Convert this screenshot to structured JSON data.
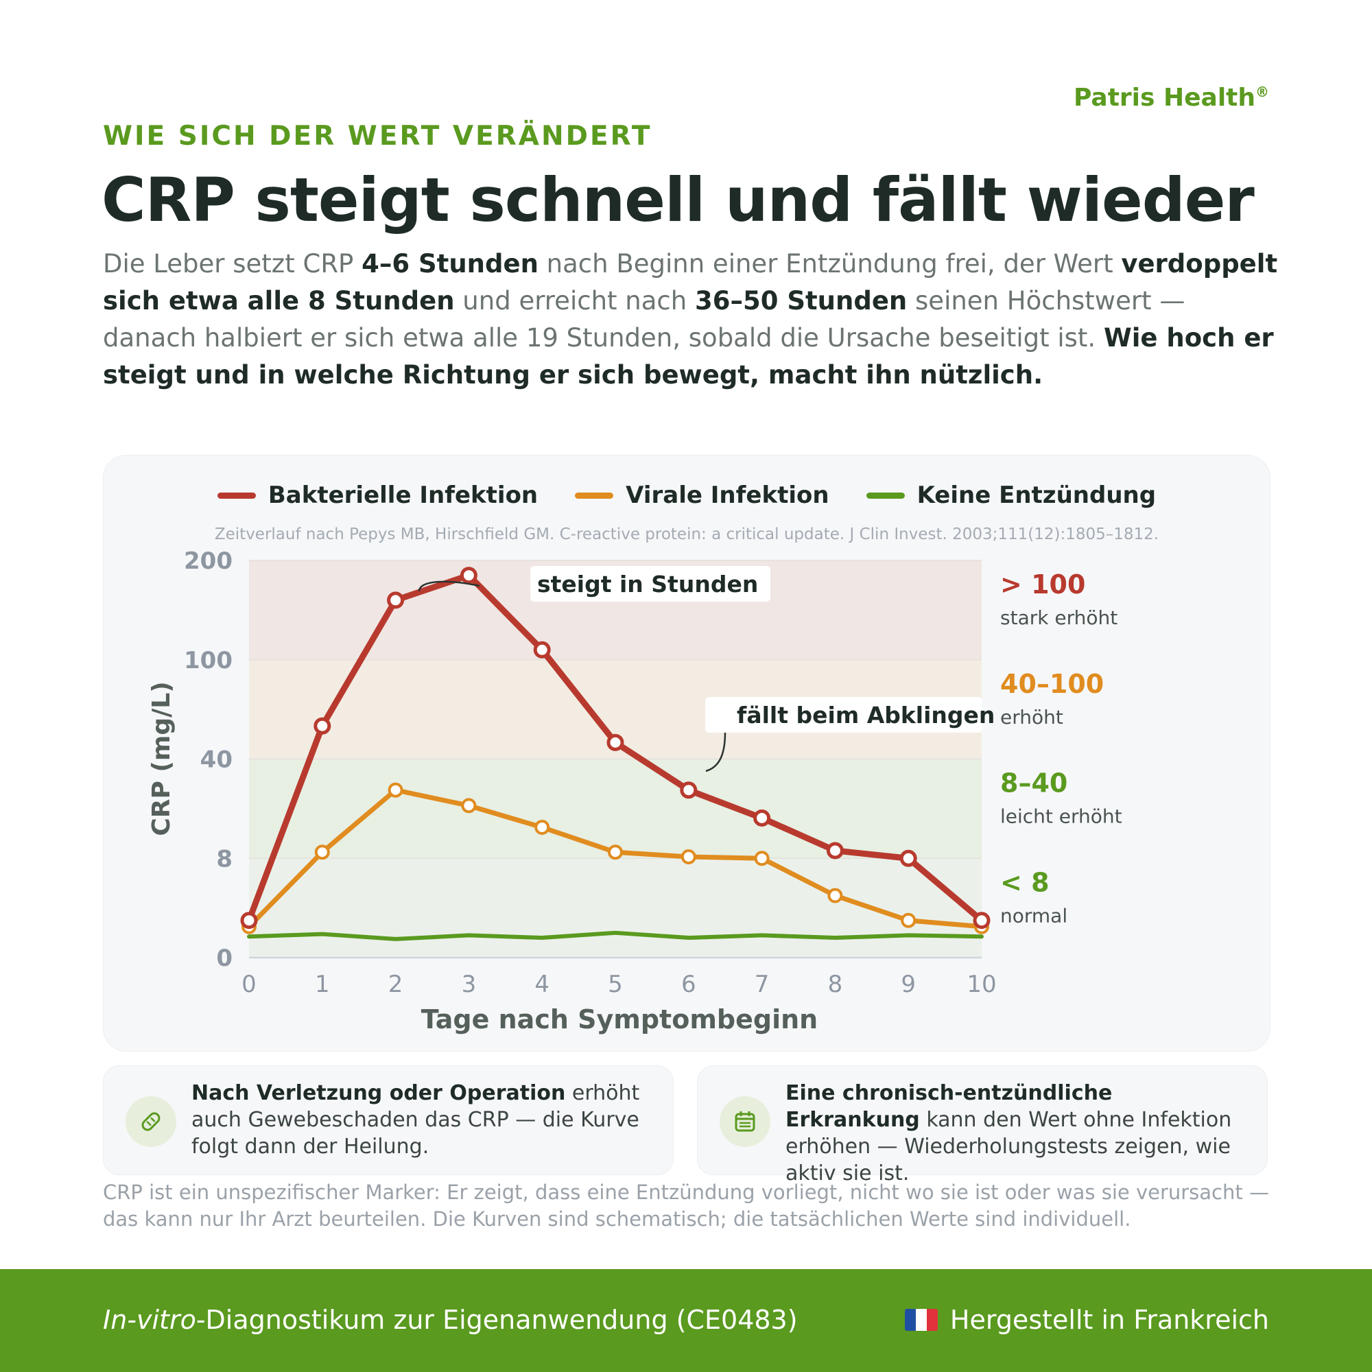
{
  "brand": {
    "name": "Patris Health",
    "mark": "®"
  },
  "eyebrow": "WIE SICH DER WERT VERÄNDERT",
  "title": "CRP steigt schnell und fällt wieder",
  "intro": {
    "p1": "Die Leber setzt CRP ",
    "b1": "4–6 Stunden",
    "p2": " nach Beginn einer Entzündung frei, der Wert ",
    "b2": "verdoppelt sich etwa alle 8 Stunden",
    "p3": " und erreicht nach ",
    "b3": "36–50 Stunden",
    "p4": " seinen Höchstwert — danach halbiert er sich etwa alle 19 Stunden, sobald die Ursache beseitigt ist. ",
    "b4": "Wie hoch er steigt und in welche Richtung er sich bewegt, macht ihn nützlich."
  },
  "chart_data": {
    "type": "line",
    "citation": "Zeitverlauf nach Pepys MB, Hirschfield GM. C-reactive protein: a critical update. J Clin Invest. 2003;111(12):1805–1812.",
    "xlabel": "Tage nach Symptombeginn",
    "ylabel": "CRP (mg/L)",
    "x": [
      0,
      1,
      2,
      3,
      4,
      5,
      6,
      7,
      8,
      9,
      10
    ],
    "y_ticks": [
      "0",
      "8",
      "40",
      "100",
      "200"
    ],
    "y_scale": "piecewise (0, 8, 40, 100, 200 equally spaced)",
    "grid": true,
    "legend_position": "top-center",
    "series": [
      {
        "name": "Bakterielle Infektion",
        "color": "#b83a2e",
        "markers": true,
        "values": [
          3,
          60,
          160,
          185,
          110,
          50,
          30,
          21,
          10.5,
          8,
          3
        ]
      },
      {
        "name": "Virale Infektion",
        "color": "#e08c1f",
        "markers": true,
        "values": [
          2.5,
          10,
          30,
          25,
          18,
          10,
          8.5,
          8,
          5,
          3,
          2.5
        ]
      },
      {
        "name": "Keine Entzündung",
        "color": "#5a9a1f",
        "markers": false,
        "values": [
          1.7,
          1.9,
          1.5,
          1.8,
          1.6,
          2.0,
          1.6,
          1.8,
          1.6,
          1.8,
          1.7
        ]
      }
    ],
    "zones": [
      {
        "label": "> 100",
        "desc": "stark erhöht",
        "from": 100,
        "to": 200,
        "color": "#b83a2e",
        "fill": "#f0e6e4"
      },
      {
        "label": "40–100",
        "desc": "erhöht",
        "from": 40,
        "to": 100,
        "color": "#e08c1f",
        "fill": "#f3ece2"
      },
      {
        "label": "8–40",
        "desc": "leicht erhöht",
        "from": 8,
        "to": 40,
        "color": "#5a9a1f",
        "fill": "#e8efe3"
      },
      {
        "label": "< 8",
        "desc": "normal",
        "from": 0,
        "to": 8,
        "color": "#5a9a1f",
        "fill": "#ebf1ea"
      }
    ],
    "annotations": [
      {
        "text": "steigt in Stunden",
        "series": 0,
        "x": 2
      },
      {
        "text": "fällt beim Abklingen",
        "series": 0,
        "x": 6
      }
    ]
  },
  "cards": [
    {
      "icon": "bandage-icon",
      "bold": "Nach Verletzung oder Operation",
      "text": " erhöht auch Gewebeschaden das CRP — die Kurve folgt dann der Heilung."
    },
    {
      "icon": "calendar-icon",
      "bold": "Eine chronisch-entzündliche Erkrankung",
      "text": " kann den Wert ohne Infektion erhöhen — Wiederholungstests zeigen, wie aktiv sie ist."
    }
  ],
  "disclaimer": "CRP ist ein unspezifischer Marker: Er zeigt, dass eine Entzündung vorliegt, nicht wo sie ist oder was sie verursacht — das kann nur Ihr Arzt beurteilen. Die Kurven sind schematisch; die tatsächlichen Werte sind individuell.",
  "footer": {
    "left_italic": "In-vitro",
    "left_rest": "-Diagnostikum zur Eigenanwendung (CE0483)",
    "right": "Hergestellt in Frankreich",
    "flag_colors": [
      "#1f4fa3",
      "#ffffff",
      "#e0313c"
    ]
  }
}
